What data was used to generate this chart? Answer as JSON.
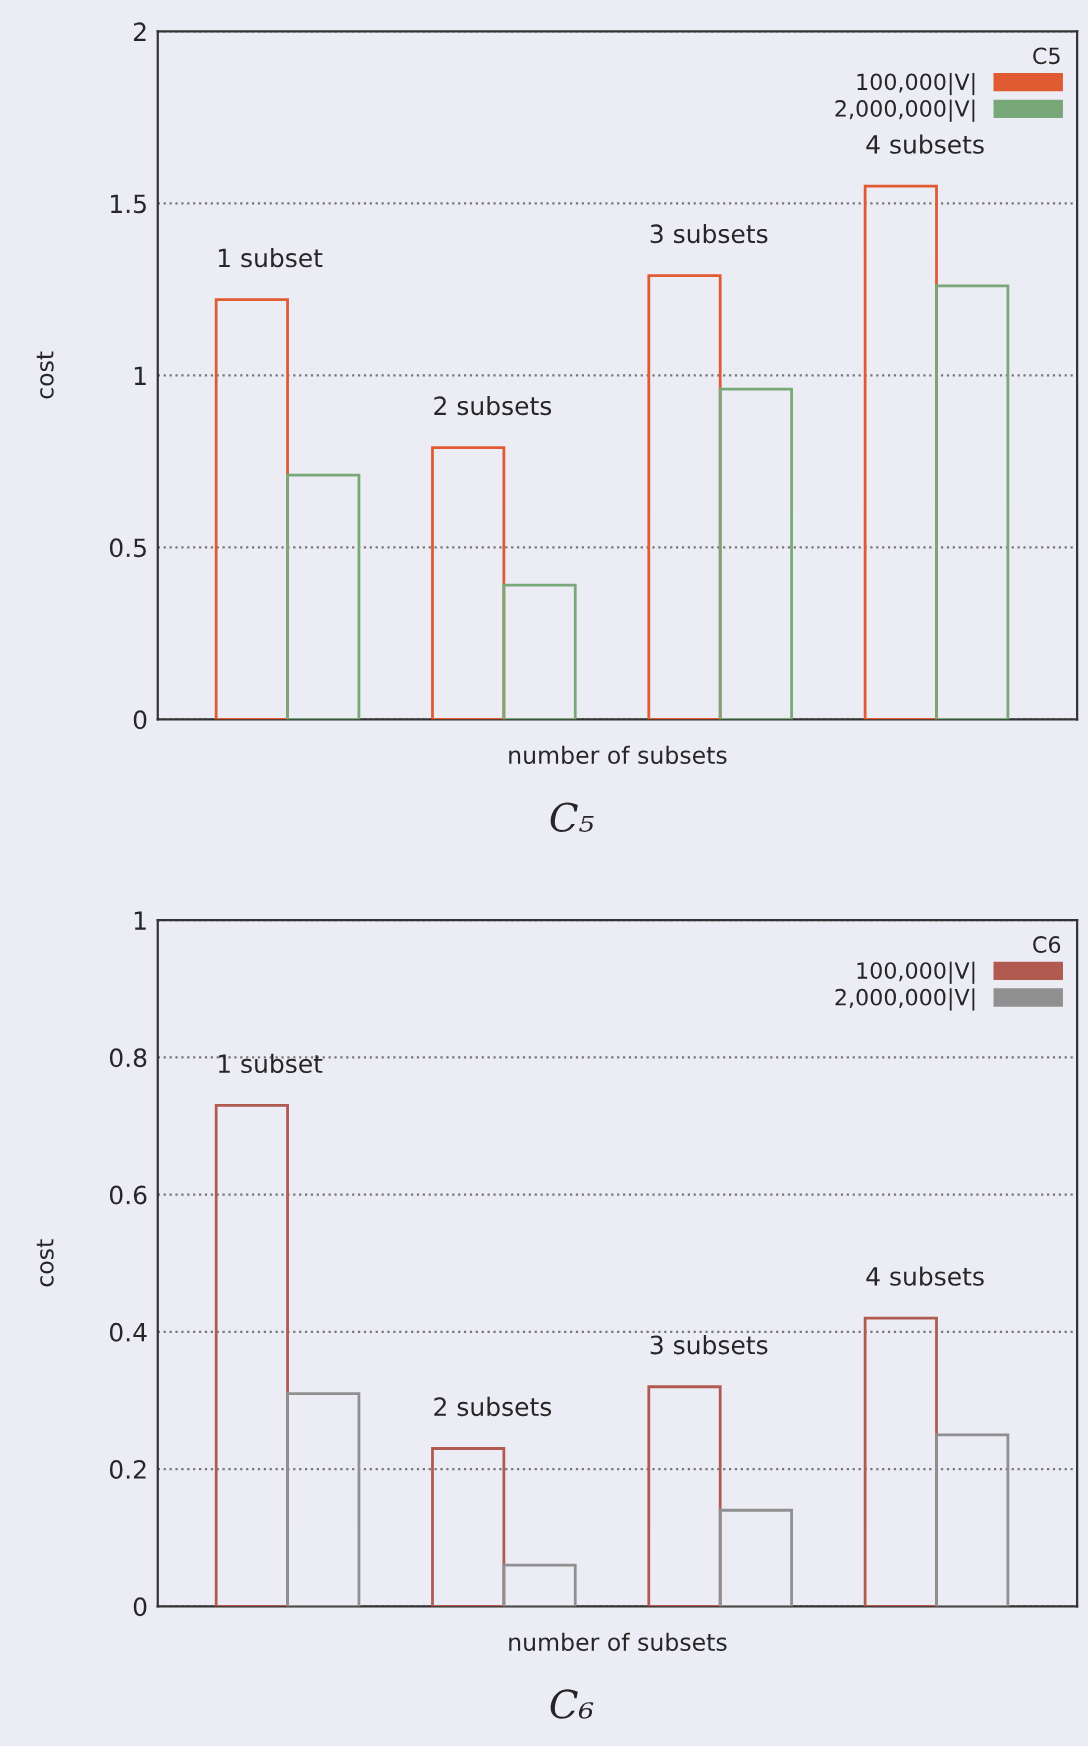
{
  "chart_data": [
    {
      "type": "bar",
      "categories": [
        null,
        null,
        null,
        null
      ],
      "xlabel": "number of subsets",
      "ylabel": "cost",
      "legend_title": "C5",
      "legend": "top right",
      "grid": "y",
      "series": [
        {
          "name": "100,000|V|",
          "color": "#e05a32",
          "values": [
            1.22,
            0.79,
            1.29,
            1.55
          ]
        },
        {
          "name": "2,000,000|V|",
          "color": "#78a878",
          "values": [
            0.71,
            0.39,
            0.96,
            1.26
          ]
        }
      ],
      "ylim": [
        0,
        2
      ],
      "yticks": [
        0,
        0.5,
        1,
        1.5,
        2
      ],
      "annotations": [
        "1 subset",
        "2 subsets",
        "3 subsets",
        "4 subsets",
        "C₅"
      ]
    },
    {
      "type": "bar",
      "categories": [
        null,
        null,
        null,
        null
      ],
      "xlabel": "number of subsets",
      "ylabel": "cost",
      "legend_title": "C6",
      "legend": "top right",
      "grid": "y",
      "series": [
        {
          "name": "100,000|V|",
          "color": "#b05a50",
          "values": [
            0.73,
            0.23,
            0.32,
            0.42
          ]
        },
        {
          "name": "2,000,000|V|",
          "color": "#909090",
          "values": [
            0.31,
            0.06,
            0.14,
            0.25
          ]
        }
      ],
      "ylim": [
        0,
        1
      ],
      "yticks": [
        0,
        0.2,
        0.4,
        0.6,
        0.8,
        1
      ],
      "annotations": [
        "1 subset",
        "2 subsets",
        "3 subsets",
        "4 subsets",
        "C₆"
      ]
    }
  ]
}
